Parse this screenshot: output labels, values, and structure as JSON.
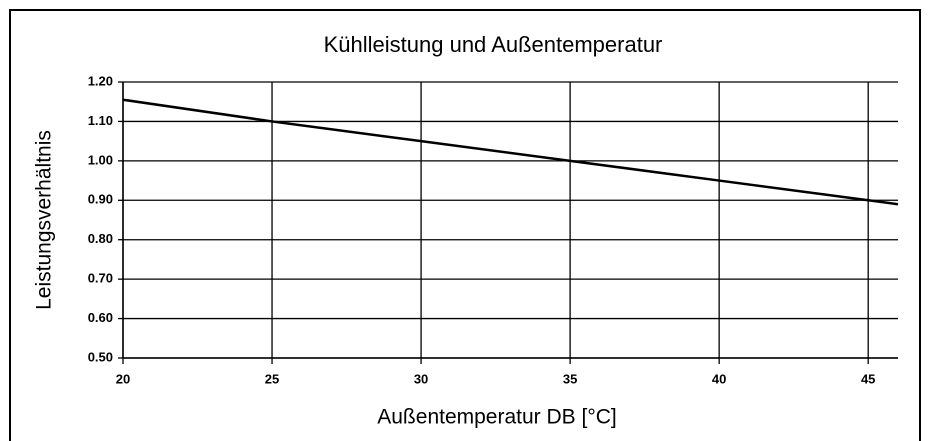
{
  "chart_data": {
    "type": "line",
    "title": "Kühlleistung und  Außentemperatur",
    "xlabel": "Außentemperatur DB [°C]",
    "ylabel": "Leistungsverhältnis",
    "x": [
      20,
      25,
      30,
      35,
      40,
      45,
      46
    ],
    "series": [
      {
        "name": "Leistungsverhältnis",
        "color": "#000000",
        "values": [
          1.155,
          1.1,
          1.05,
          1.0,
          0.95,
          0.9,
          0.89
        ]
      }
    ],
    "xlim": [
      20,
      46
    ],
    "xticks": [
      20,
      25,
      30,
      35,
      40,
      45
    ],
    "ylim": [
      0.5,
      1.2
    ],
    "yticks": [
      {
        "value": 0.5,
        "label": "0.50"
      },
      {
        "value": 0.6,
        "label": "0.60"
      },
      {
        "value": 0.7,
        "label": "0.70"
      },
      {
        "value": 0.8,
        "label": "0.80"
      },
      {
        "value": 0.9,
        "label": "0.90"
      },
      {
        "value": 1.0,
        "label": "1.00"
      },
      {
        "value": 1.1,
        "label": "1.10"
      },
      {
        "value": 1.2,
        "label": "1.20"
      }
    ],
    "grid": true
  }
}
